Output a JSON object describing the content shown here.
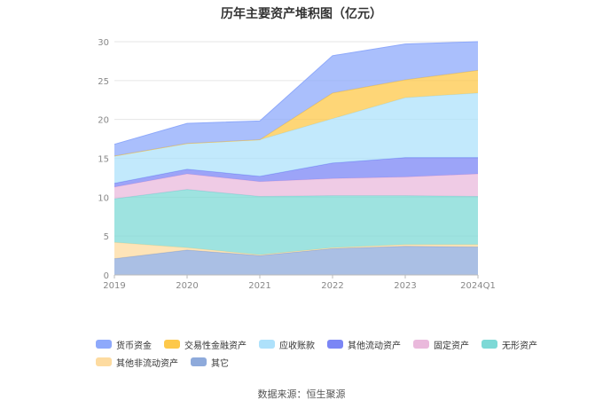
{
  "chart_data": {
    "type": "area",
    "title": "历年主要资产堆积图（亿元）",
    "categories": [
      "2019",
      "2020",
      "2021",
      "2022",
      "2023",
      "2024Q1"
    ],
    "ylim": [
      0,
      30
    ],
    "yticks": [
      "0",
      "5",
      "10",
      "15",
      "20",
      "25",
      "30"
    ],
    "stacked": true,
    "grid": true,
    "legend_position": "bottom",
    "series": [
      {
        "name": "其它",
        "color": "#8eaadb",
        "values": [
          2.1,
          3.2,
          2.5,
          3.4,
          3.7,
          3.6
        ]
      },
      {
        "name": "其他非流动资产",
        "color": "#fddba0",
        "values": [
          2.1,
          0.3,
          0.1,
          0.1,
          0.2,
          0.3
        ]
      },
      {
        "name": "无形资产",
        "color": "#7dd9d6",
        "values": [
          5.6,
          7.5,
          7.5,
          6.7,
          6.3,
          6.2
        ]
      },
      {
        "name": "固定资产",
        "color": "#eab9dc",
        "values": [
          1.5,
          2.0,
          1.9,
          2.2,
          2.4,
          2.9
        ]
      },
      {
        "name": "其他流动资产",
        "color": "#7b86f5",
        "values": [
          0.5,
          0.6,
          0.7,
          2.0,
          2.5,
          2.1
        ]
      },
      {
        "name": "应收账款",
        "color": "#aee1fb",
        "values": [
          3.5,
          3.3,
          4.7,
          5.7,
          7.7,
          8.3
        ]
      },
      {
        "name": "交易性金融资产",
        "color": "#fdc84a",
        "values": [
          0.0,
          0.0,
          0.0,
          3.3,
          2.3,
          2.9
        ]
      },
      {
        "name": "货币资金",
        "color": "#8ea9fb",
        "values": [
          1.5,
          2.6,
          2.4,
          4.8,
          4.6,
          3.7
        ]
      }
    ]
  },
  "legend": [
    {
      "label": "货币资金",
      "color": "#8ea9fb"
    },
    {
      "label": "交易性金融资产",
      "color": "#fdc84a"
    },
    {
      "label": "应收账款",
      "color": "#aee1fb"
    },
    {
      "label": "其他流动资产",
      "color": "#7b86f5"
    },
    {
      "label": "固定资产",
      "color": "#eab9dc"
    },
    {
      "label": "无形资产",
      "color": "#7dd9d6"
    },
    {
      "label": "其他非流动资产",
      "color": "#fddba0"
    },
    {
      "label": "其它",
      "color": "#8eaadb"
    }
  ],
  "source": "数据来源：恒生聚源"
}
